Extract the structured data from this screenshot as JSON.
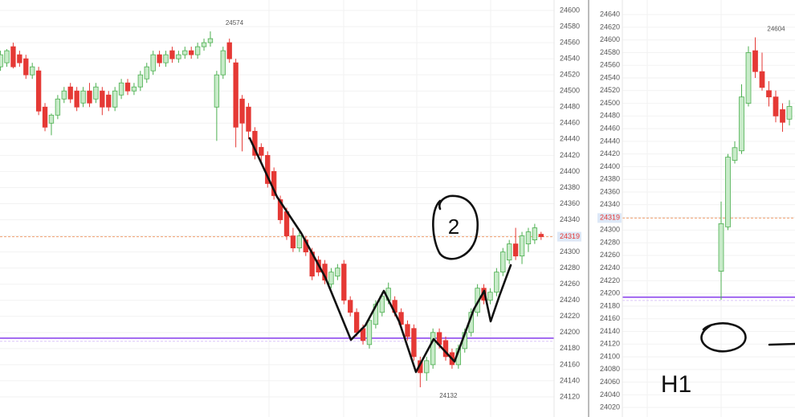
{
  "chart_data": [
    {
      "type": "candlestick",
      "ylim": [
        24107,
        24613
      ],
      "yticks": [
        24120,
        24140,
        24160,
        24180,
        24200,
        24220,
        24240,
        24260,
        24280,
        24300,
        24320,
        24340,
        24360,
        24380,
        24400,
        24420,
        24440,
        24460,
        24480,
        24500,
        24520,
        24540,
        24560,
        24580,
        24600
      ],
      "grid": true,
      "up_color": "#4caf50",
      "down_color": "#e53935",
      "price_line": 24319,
      "price_color": "#f0a070",
      "level_line": 24193,
      "level_color": "#a066f0",
      "high_label": 24574,
      "low_label": 24132,
      "note": "2",
      "series": [
        {
          "values": [
            [
              24530,
              24550,
              24525,
              24545
            ],
            [
              24535,
              24552,
              24530,
              24550
            ],
            [
              24555,
              24560,
              24528,
              24530
            ],
            [
              24545,
              24550,
              24530,
              24535
            ],
            [
              24540,
              24545,
              24515,
              24520
            ],
            [
              24520,
              24535,
              24515,
              24530
            ],
            [
              24525,
              24530,
              24470,
              24475
            ],
            [
              24480,
              24485,
              24450,
              24455
            ],
            [
              24460,
              24472,
              24445,
              24470
            ],
            [
              24470,
              24495,
              24465,
              24490
            ],
            [
              24490,
              24505,
              24485,
              24500
            ],
            [
              24505,
              24510,
              24485,
              24490
            ],
            [
              24500,
              24505,
              24475,
              24480
            ],
            [
              24485,
              24505,
              24480,
              24500
            ],
            [
              24500,
              24510,
              24480,
              24485
            ],
            [
              24490,
              24510,
              24485,
              24505
            ],
            [
              24500,
              24505,
              24470,
              24480
            ],
            [
              24495,
              24500,
              24475,
              24480
            ],
            [
              24480,
              24505,
              24475,
              24500
            ],
            [
              24495,
              24515,
              24490,
              24510
            ],
            [
              24510,
              24515,
              24495,
              24500
            ],
            [
              24500,
              24510,
              24495,
              24505
            ],
            [
              24505,
              24525,
              24500,
              24520
            ],
            [
              24515,
              24535,
              24510,
              24530
            ],
            [
              24525,
              24550,
              24520,
              24545
            ],
            [
              24545,
              24550,
              24530,
              24535
            ],
            [
              24535,
              24550,
              24530,
              24545
            ],
            [
              24550,
              24555,
              24535,
              24540
            ],
            [
              24540,
              24550,
              24535,
              24545
            ],
            [
              24545,
              24555,
              24540,
              24550
            ],
            [
              24550,
              24555,
              24540,
              24545
            ],
            [
              24545,
              24560,
              24540,
              24555
            ],
            [
              24555,
              24565,
              24550,
              24560
            ],
            [
              24560,
              24574,
              24555,
              24565
            ],
            [
              24480,
              24525,
              24438,
              24520
            ],
            [
              24520,
              24555,
              24515,
              24550
            ],
            [
              24560,
              24565,
              24535,
              24540
            ],
            [
              24535,
              24540,
              24430,
              24455
            ],
            [
              24490,
              24495,
              24425,
              24460
            ],
            [
              24480,
              24485,
              24440,
              24450
            ],
            [
              24450,
              24455,
              24415,
              24420
            ],
            [
              24430,
              24435,
              24410,
              24420
            ],
            [
              24420,
              24425,
              24380,
              24385
            ],
            [
              24400,
              24405,
              24365,
              24370
            ],
            [
              24365,
              24370,
              24335,
              24340
            ],
            [
              24350,
              24355,
              24315,
              24320
            ],
            [
              24320,
              24330,
              24300,
              24305
            ],
            [
              24305,
              24325,
              24300,
              24320
            ],
            [
              24315,
              24320,
              24295,
              24300
            ],
            [
              24300,
              24305,
              24265,
              24270
            ],
            [
              24290,
              24295,
              24270,
              24275
            ],
            [
              24285,
              24290,
              24260,
              24265
            ],
            [
              24260,
              24280,
              24255,
              24275
            ],
            [
              24270,
              24285,
              24265,
              24280
            ],
            [
              24285,
              24290,
              24235,
              24240
            ],
            [
              24240,
              24245,
              24220,
              24225
            ],
            [
              24225,
              24230,
              24195,
              24200
            ],
            [
              24205,
              24210,
              24185,
              24190
            ],
            [
              24185,
              24220,
              24180,
              24215
            ],
            [
              24210,
              24240,
              24205,
              24235
            ],
            [
              24225,
              24250,
              24220,
              24245
            ],
            [
              24240,
              24262,
              24235,
              24255
            ],
            [
              24240,
              24245,
              24220,
              24225
            ],
            [
              24225,
              24230,
              24205,
              24210
            ],
            [
              24210,
              24215,
              24190,
              24195
            ],
            [
              24205,
              24210,
              24165,
              24170
            ],
            [
              24165,
              24170,
              24132,
              24150
            ],
            [
              24150,
              24170,
              24140,
              24165
            ],
            [
              24160,
              24205,
              24155,
              24200
            ],
            [
              24200,
              24205,
              24180,
              24185
            ],
            [
              24190,
              24195,
              24165,
              24170
            ],
            [
              24175,
              24180,
              24155,
              24160
            ],
            [
              24160,
              24185,
              24155,
              24180
            ],
            [
              24180,
              24205,
              24175,
              24200
            ],
            [
              24200,
              24230,
              24195,
              24225
            ],
            [
              24225,
              24260,
              24220,
              24255
            ],
            [
              24255,
              24260,
              24235,
              24240
            ],
            [
              24240,
              24255,
              24235,
              24250
            ],
            [
              24250,
              24280,
              24245,
              24275
            ],
            [
              24275,
              24305,
              24270,
              24300
            ],
            [
              24290,
              24315,
              24285,
              24310
            ],
            [
              24310,
              24330,
              24290,
              24295
            ],
            [
              24295,
              24325,
              24285,
              24320
            ],
            [
              24310,
              24330,
              24300,
              24325
            ],
            [
              24315,
              24335,
              24310,
              24330
            ],
            [
              24322,
              24325,
              24315,
              24319
            ]
          ]
        }
      ]
    },
    {
      "type": "candlestick",
      "ylim": [
        24005,
        24663
      ],
      "yticks": [
        24020,
        24040,
        24060,
        24080,
        24100,
        24120,
        24140,
        24160,
        24180,
        24200,
        24220,
        24240,
        24260,
        24280,
        24300,
        24320,
        24340,
        24360,
        24380,
        24400,
        24420,
        24440,
        24460,
        24480,
        24500,
        24520,
        24540,
        24560,
        24580,
        24600,
        24620,
        24640
      ],
      "grid": true,
      "up_color": "#4caf50",
      "down_color": "#e53935",
      "price_line": 24319,
      "price_color": "#f0a070",
      "level_line": 24194,
      "level_color": "#a066f0",
      "high_label": 24604,
      "note": "H1",
      "series": [
        {
          "values": [
            [
              24235,
              24345,
              24190,
              24310
            ],
            [
              24305,
              24420,
              24300,
              24415
            ],
            [
              24410,
              24440,
              24405,
              24430
            ],
            [
              24425,
              24530,
              24420,
              24510
            ],
            [
              24500,
              24590,
              24495,
              24580
            ],
            [
              24583,
              24604,
              24540,
              24550
            ],
            [
              24550,
              24580,
              24520,
              24525
            ],
            [
              24520,
              24535,
              24495,
              24510
            ],
            [
              24510,
              24520,
              24470,
              24480
            ],
            [
              24490,
              24500,
              24455,
              24470
            ],
            [
              24475,
              24505,
              24465,
              24495
            ]
          ]
        }
      ]
    }
  ]
}
